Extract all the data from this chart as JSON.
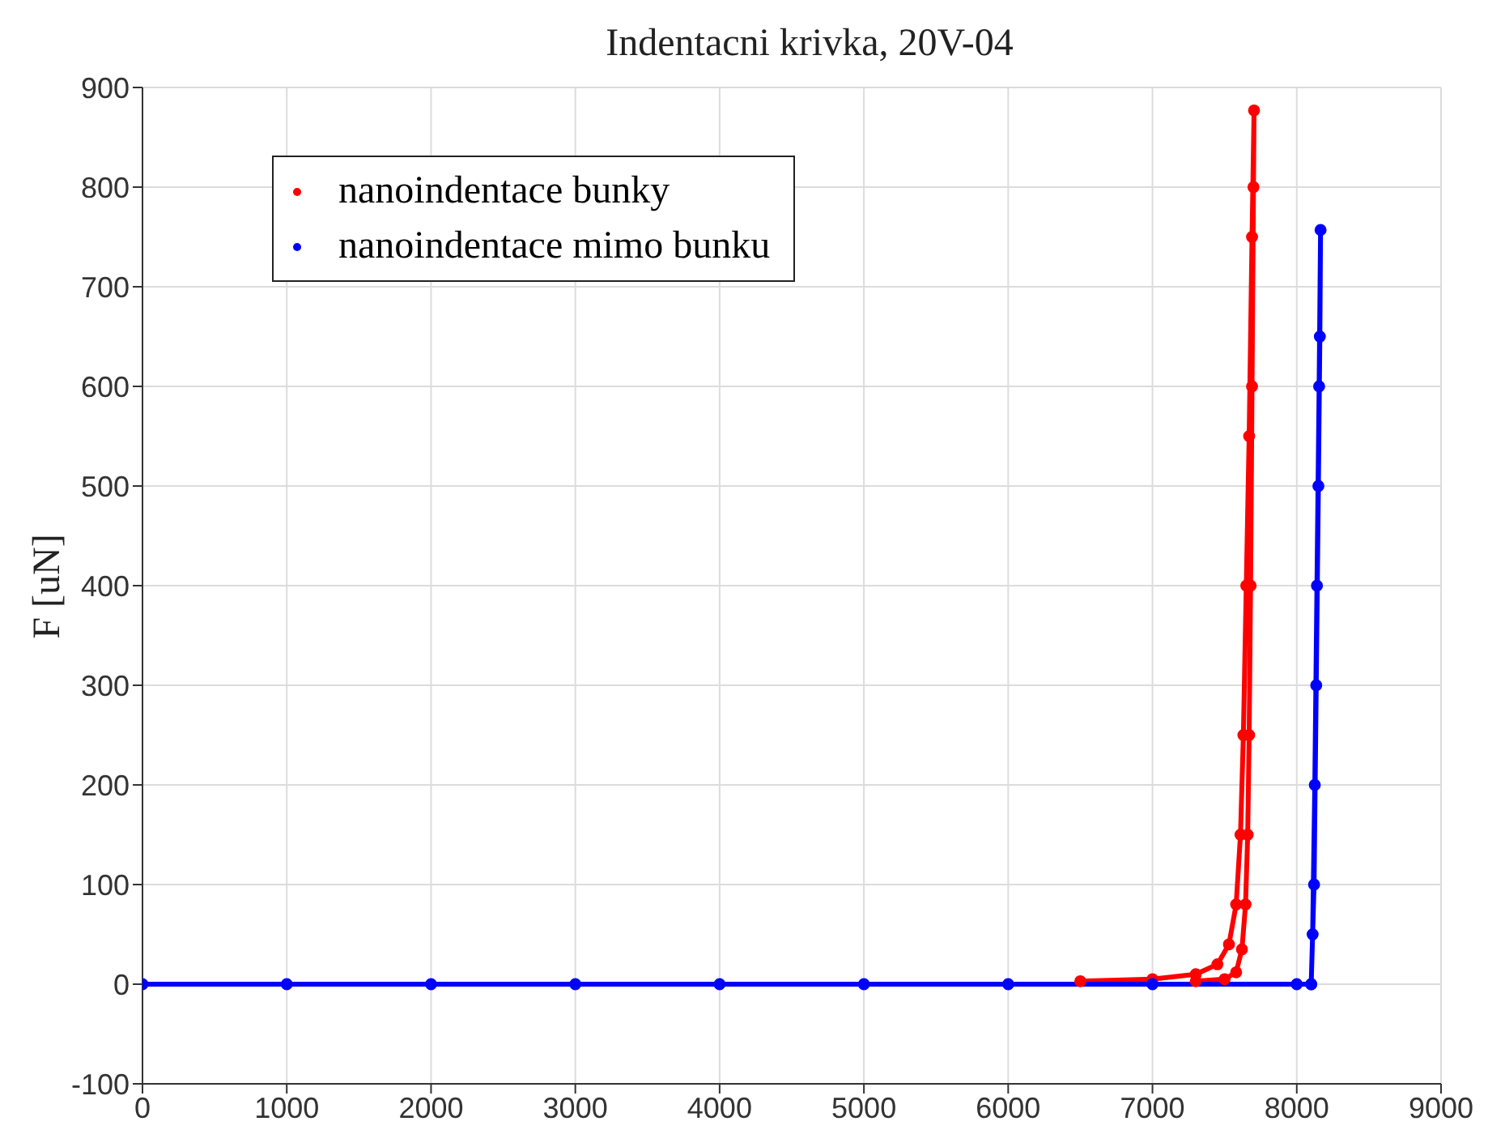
{
  "chart_data": {
    "type": "line",
    "title": "Indentacni krivka, 20V-04",
    "ylabel": "F [uN]",
    "xlim": [
      0,
      9000
    ],
    "xticks": [
      0,
      1000,
      2000,
      3000,
      4000,
      5000,
      6000,
      7000,
      8000,
      9000
    ],
    "ylim": [
      -100,
      900
    ],
    "yticks": [
      -100,
      0,
      100,
      200,
      300,
      400,
      500,
      600,
      700,
      800,
      900
    ],
    "grid": true,
    "legend": "top left",
    "marker": "circle",
    "series": [
      {
        "name": "nanoindentace bunky",
        "color": "#ff0000",
        "x": [
          6500,
          7000,
          7300,
          7450,
          7530,
          7580,
          7610,
          7630,
          7650,
          7670,
          7690,
          7704,
          7700,
          7690,
          7680,
          7670,
          7660,
          7645,
          7620,
          7580,
          7500,
          7300
        ],
        "values": [
          3,
          5,
          10,
          20,
          40,
          80,
          150,
          250,
          400,
          550,
          750,
          877,
          800,
          600,
          400,
          250,
          150,
          80,
          35,
          12,
          5,
          3
        ]
      },
      {
        "name": "nanoindentace mimo bunku",
        "color": "#0000ff",
        "x": [
          0,
          1000,
          2000,
          3000,
          4000,
          5000,
          6000,
          7000,
          8000,
          8100,
          8120,
          8135,
          8150,
          8160,
          8165,
          8155,
          8140,
          8125,
          8110,
          8100
        ],
        "values": [
          0,
          0,
          0,
          0,
          0,
          0,
          0,
          0,
          0,
          0,
          100,
          300,
          500,
          650,
          757,
          600,
          400,
          200,
          50,
          0
        ]
      }
    ]
  }
}
